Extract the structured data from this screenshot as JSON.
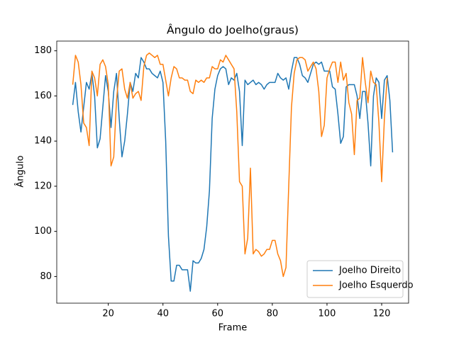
{
  "chart_data": {
    "type": "line",
    "title": "Ângulo do Joelho(graus)",
    "x_label": "Frame",
    "y_label": "Ângulo",
    "x": [
      7,
      8,
      9,
      10,
      11,
      12,
      13,
      14,
      15,
      16,
      17,
      18,
      19,
      20,
      21,
      22,
      23,
      24,
      25,
      26,
      27,
      28,
      29,
      30,
      31,
      32,
      33,
      34,
      35,
      36,
      37,
      38,
      39,
      40,
      41,
      42,
      43,
      44,
      45,
      46,
      47,
      48,
      49,
      50,
      51,
      52,
      53,
      54,
      55,
      56,
      57,
      58,
      59,
      60,
      61,
      62,
      63,
      64,
      65,
      66,
      67,
      68,
      69,
      70,
      71,
      72,
      73,
      74,
      75,
      76,
      77,
      78,
      79,
      80,
      81,
      82,
      83,
      84,
      85,
      86,
      87,
      88,
      89,
      90,
      91,
      92,
      93,
      94,
      95,
      96,
      97,
      98,
      99,
      100,
      101,
      102,
      103,
      104,
      105,
      106,
      107,
      108,
      109,
      110,
      111,
      112,
      113,
      114,
      115,
      116,
      117,
      118,
      119,
      120,
      121,
      122,
      123,
      124
    ],
    "series": [
      {
        "name": "Joelho Direito",
        "color": "#1f77b4",
        "values": [
          156,
          166,
          153,
          144,
          155,
          166,
          163,
          170,
          160,
          137,
          141,
          155,
          169,
          162,
          146,
          162,
          170,
          150,
          133,
          140,
          152,
          166,
          162,
          170,
          168,
          177,
          175,
          172,
          172,
          170,
          169,
          168,
          171,
          166,
          140,
          98,
          78,
          78,
          85,
          85,
          83,
          83,
          83,
          73.5,
          87,
          86,
          86,
          88,
          92,
          102,
          118,
          150,
          163,
          169,
          172,
          173,
          172,
          165,
          168,
          167,
          170,
          162,
          138,
          167,
          165,
          166,
          167,
          165,
          166,
          165,
          163,
          165,
          166,
          166,
          166,
          170,
          168,
          167,
          168,
          163,
          171,
          177,
          177,
          174,
          169,
          168,
          166,
          170,
          174,
          175,
          174,
          175,
          171,
          171,
          171,
          164,
          163,
          152,
          139,
          142,
          164,
          165,
          165,
          165,
          160,
          150,
          162,
          162,
          148,
          129,
          160,
          168,
          166,
          150,
          167,
          169,
          158,
          135
        ]
      },
      {
        "name": "Joelho Esquerdo",
        "color": "#ff7f0e",
        "values": [
          165,
          178,
          175,
          165,
          148,
          146,
          138,
          171,
          168,
          160,
          174,
          176,
          173,
          165,
          129,
          133,
          158,
          171,
          172,
          163,
          159,
          166,
          159,
          161,
          162,
          158,
          173,
          178,
          179,
          178,
          177,
          178,
          174,
          174,
          167,
          160,
          168,
          173,
          172,
          168,
          168,
          167,
          167,
          162,
          161,
          167,
          166,
          167,
          166,
          168,
          168,
          173,
          172,
          172,
          176,
          175,
          178,
          176,
          174,
          172,
          153,
          122,
          120,
          90,
          97,
          128,
          90,
          92,
          91,
          89,
          90,
          92,
          92,
          96,
          96,
          90,
          87,
          80,
          84,
          120,
          155,
          170,
          176,
          177,
          177,
          176,
          171,
          173,
          175,
          172,
          162,
          142,
          147,
          168,
          172,
          175,
          175,
          166,
          175,
          167,
          170,
          157,
          152,
          134,
          158,
          159,
          177,
          166,
          157,
          171,
          166,
          165,
          148,
          122,
          150,
          168,
          null,
          null
        ]
      }
    ],
    "xlim": [
      1.15,
      129.85
    ],
    "ylim": [
      68.2,
      184.3
    ],
    "xticks": [
      20,
      40,
      60,
      80,
      100,
      120
    ],
    "yticks": [
      80,
      100,
      120,
      140,
      160,
      180
    ],
    "legend_position": "lower right"
  }
}
